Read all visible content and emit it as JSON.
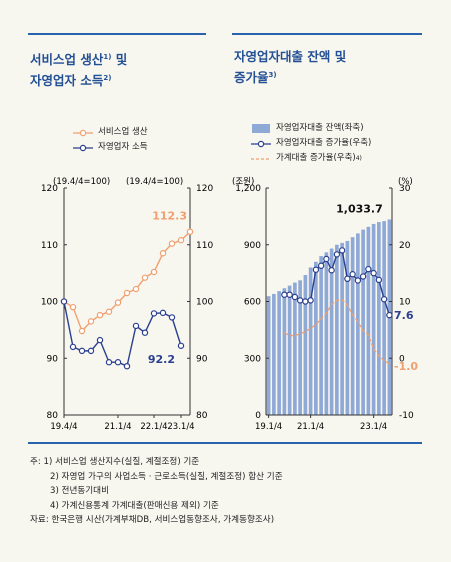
{
  "left_panel": {
    "title_line1": "서비스업 생산",
    "title_line1_sup": "1)",
    "title_line1_tail": " 및",
    "title_line2": "자영업자 소득",
    "title_line2_sup": "2)",
    "legend": [
      "서비스업 생산",
      "자영업자 소득"
    ],
    "left_axis_note": "(19.4/4=100)",
    "right_axis_note": "(19.4/4=100)"
  },
  "right_panel": {
    "title_line1": "자영업자대출 잔액 및",
    "title_line2": "증가율",
    "title_line2_sup": "3)",
    "legend": [
      "자영업자대출 잔액(좌축)",
      "자영업자대출 증가율(우축)",
      "가계대출 증가율(우축)"
    ],
    "legend3_sup": "4)",
    "left_unit": "(조원)",
    "right_unit": "(%)"
  },
  "colors": {
    "orange": "#f0a070",
    "navy": "#2a3f8f",
    "bar": "#8fa9d6",
    "rule": "#2a63ad"
  },
  "chart_data": [
    {
      "type": "line",
      "x_tick_labels": [
        "19.4/4",
        "21.1/4",
        "22.1/4",
        "23.1/4"
      ],
      "y_left": {
        "min": 80,
        "max": 120,
        "ticks": [
          "120",
          "110",
          "100",
          "90",
          "80"
        ]
      },
      "y_right": {
        "min": 80,
        "max": 120,
        "ticks": [
          "120",
          "110",
          "100",
          "90",
          "80"
        ]
      },
      "series": [
        {
          "name": "서비스업 생산",
          "color": "#f0a070",
          "values": [
            100.0,
            99.0,
            94.8,
            96.5,
            97.6,
            98.2,
            99.8,
            101.5,
            102.2,
            104.2,
            105.2,
            108.5,
            110.2,
            110.8,
            112.3
          ]
        },
        {
          "name": "자영업자 소득",
          "color": "#2a3f8f",
          "values": [
            100.0,
            92.0,
            91.3,
            91.3,
            93.2,
            89.3,
            89.3,
            88.6,
            95.7,
            94.5,
            97.9,
            98.0,
            97.2,
            92.2
          ]
        }
      ],
      "annotations": [
        {
          "text": "112.3",
          "series": 0
        },
        {
          "text": "92.2",
          "series": 1
        }
      ]
    },
    {
      "type": "bar+line",
      "x_tick_labels": [
        "19.1/4",
        "21.1/4",
        "23.1/4"
      ],
      "y_left": {
        "min": 0,
        "max": 1200,
        "ticks": [
          "1,200",
          "900",
          "600",
          "300",
          "0"
        ]
      },
      "y_right": {
        "min": -10,
        "max": 30,
        "ticks": [
          "30",
          "20",
          "10",
          "0",
          "-10"
        ]
      },
      "bars": {
        "name": "자영업자대출 잔액(좌축)",
        "axis": "left",
        "values": [
          628,
          640,
          655,
          670,
          684,
          700,
          712,
          740,
          780,
          810,
          840,
          860,
          880,
          900,
          910,
          920,
          940,
          960,
          980,
          995,
          1010,
          1020,
          1025,
          1033.7
        ]
      },
      "series": [
        {
          "name": "자영업자대출 증가율(우축)",
          "axis": "right",
          "color": "#2a3f8f",
          "values": [
            11.2,
            11.2,
            10.8,
            10.2,
            10.0,
            10.2,
            15.6,
            16.3,
            17.5,
            15.5,
            18.3,
            19.0,
            14.0,
            14.8,
            13.7,
            14.4,
            15.7,
            15.0,
            13.8,
            10.4,
            7.6
          ]
        },
        {
          "name": "가계대출 증가율(우축)",
          "axis": "right",
          "color": "#f0a070",
          "dashed": true,
          "values": [
            4.5,
            4.0,
            4.0,
            4.3,
            4.7,
            5.3,
            5.9,
            7.0,
            7.9,
            9.5,
            10.2,
            10.3,
            9.3,
            7.7,
            6.4,
            4.9,
            4.1,
            1.6,
            0.4,
            -0.4,
            -1.0
          ]
        }
      ],
      "annotations": [
        {
          "text": "1,033.7",
          "target": "bars"
        },
        {
          "text": "7.6",
          "series": 0
        },
        {
          "text": "-1.0",
          "series": 1
        }
      ]
    }
  ],
  "notes": {
    "n1": "주:  1) 서비스업 생산지수(실질, 계절조정) 기준",
    "n2": "2) 자영업 가구의 사업소득 · 근로소득(실질, 계절조정) 합산 기준",
    "n3": "3) 전년동기대비",
    "n4": "4) 가계신용통계 가계대출(판매신용 제외) 기준",
    "source": "자료: 한국은행 시산(가계부채DB, 서비스업동향조사, 가계동향조사)"
  }
}
